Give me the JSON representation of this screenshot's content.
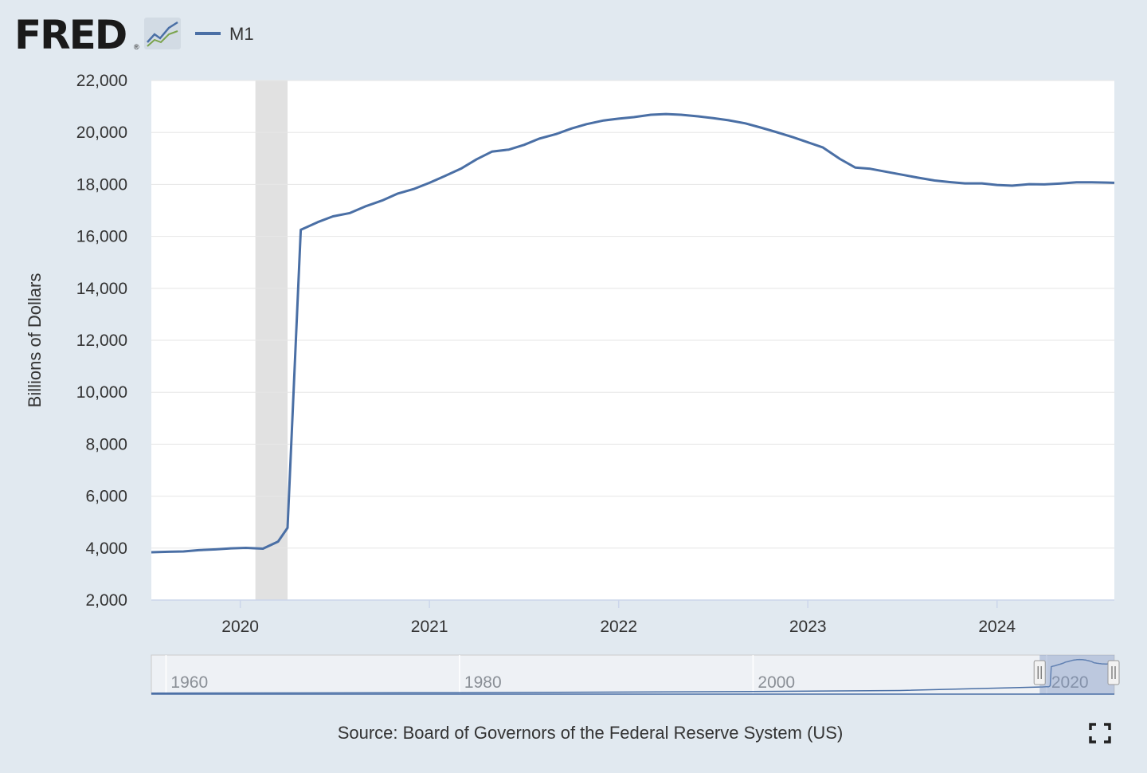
{
  "logo": {
    "text": "FRED",
    "registered_mark": "®",
    "icon": "line-chart-icon"
  },
  "legend": {
    "series_label": "M1",
    "line_color": "#4a6fa5"
  },
  "source_text": "Source: Board of Governors of the Federal Reserve System (US)",
  "fullscreen": {
    "icon": "fullscreen-icon"
  },
  "colors": {
    "background": "#e1e9f0",
    "plot_background": "#ffffff",
    "series": "#4a6fa5",
    "recession": "#e1e1e1",
    "gridline": "#e6e6e6",
    "navigator_mask": "#7f97c4"
  },
  "chart_data": {
    "type": "line",
    "title": "",
    "xlabel": "",
    "ylabel": "Billions of Dollars",
    "xlim": [
      2019.53,
      2024.62
    ],
    "ylim": [
      2000,
      22000
    ],
    "grid": true,
    "legend_position": "top-left",
    "x_tick_labels": [
      "2020",
      "2021",
      "2022",
      "2023",
      "2024"
    ],
    "x_ticks": [
      2020,
      2021,
      2022,
      2023,
      2024
    ],
    "y_tick_labels": [
      "2,000",
      "4,000",
      "6,000",
      "8,000",
      "10,000",
      "12,000",
      "14,000",
      "16,000",
      "18,000",
      "20,000",
      "22,000"
    ],
    "y_ticks": [
      2000,
      4000,
      6000,
      8000,
      10000,
      12000,
      14000,
      16000,
      18000,
      20000,
      22000
    ],
    "recession_shading": [
      2020.08,
      2020.25
    ],
    "series": [
      {
        "name": "M1",
        "x": [
          2019.53,
          2019.62,
          2019.7,
          2019.78,
          2019.87,
          2019.95,
          2020.03,
          2020.12,
          2020.2,
          2020.25,
          2020.32,
          2020.41,
          2020.49,
          2020.58,
          2020.66,
          2020.75,
          2020.83,
          2020.92,
          2021.0,
          2021.08,
          2021.17,
          2021.25,
          2021.33,
          2021.42,
          2021.5,
          2021.58,
          2021.67,
          2021.75,
          2021.83,
          2021.92,
          2022.0,
          2022.08,
          2022.17,
          2022.25,
          2022.33,
          2022.42,
          2022.5,
          2022.58,
          2022.67,
          2022.75,
          2022.83,
          2022.92,
          2023.0,
          2023.08,
          2023.17,
          2023.25,
          2023.33,
          2023.42,
          2023.5,
          2023.58,
          2023.67,
          2023.75,
          2023.83,
          2023.92,
          2024.0,
          2024.08,
          2024.17,
          2024.25,
          2024.33,
          2024.42,
          2024.5,
          2024.58,
          2024.62
        ],
        "y": [
          3840,
          3860,
          3870,
          3920,
          3950,
          3990,
          4010,
          3980,
          4250,
          4780,
          16250,
          16550,
          16770,
          16900,
          17150,
          17380,
          17640,
          17830,
          18060,
          18320,
          18620,
          18970,
          19260,
          19340,
          19520,
          19760,
          19940,
          20150,
          20320,
          20460,
          20530,
          20590,
          20680,
          20710,
          20680,
          20620,
          20550,
          20470,
          20350,
          20190,
          20020,
          19820,
          19620,
          19420,
          18980,
          18650,
          18600,
          18480,
          18370,
          18260,
          18150,
          18090,
          18040,
          18040,
          17980,
          17950,
          18010,
          18000,
          18030,
          18080,
          18080,
          18070,
          18060
        ]
      }
    ],
    "navigator": {
      "xlim": [
        1959,
        2024.62
      ],
      "x_tick_labels": [
        "1960",
        "1980",
        "2000",
        "2020"
      ],
      "x_ticks": [
        1960,
        1980,
        2000,
        2020
      ],
      "selected_range": [
        2019.53,
        2024.62
      ]
    }
  }
}
